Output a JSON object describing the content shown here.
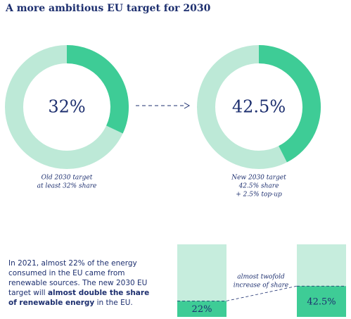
{
  "title": "A more ambitious EU target for 2030",
  "chart_data": [
    {
      "type": "donut",
      "values": [
        32
      ],
      "value_labels": [
        "32%"
      ],
      "caption": [
        "Old 2030 target",
        "at least 32% share"
      ],
      "color": "#3ecc96",
      "track_color": "#bde9d7",
      "ylim": [
        0,
        100
      ]
    },
    {
      "type": "donut",
      "values": [
        42.5
      ],
      "value_labels": [
        "42.5%"
      ],
      "caption": [
        "New 2030 target",
        "42.5% share",
        "+ 2.5% top-up"
      ],
      "color": "#3ecc96",
      "track_color": "#bde9d7",
      "ylim": [
        0,
        100
      ]
    },
    {
      "type": "bar",
      "values": [
        22,
        42.5
      ],
      "value_labels": [
        "22%",
        "42.5%"
      ],
      "annotation": [
        "almost twofold",
        "increase of share"
      ],
      "color": "#3ecc96",
      "track_color": "#c6eddd",
      "ylim": [
        0,
        100
      ]
    }
  ],
  "paragraph": [
    "In 2021, almost 22% of the energy consumed in the EU came from renewable sources. The new 2030 EU target will ",
    "almost double the share of renewable energy",
    " in the EU."
  ]
}
